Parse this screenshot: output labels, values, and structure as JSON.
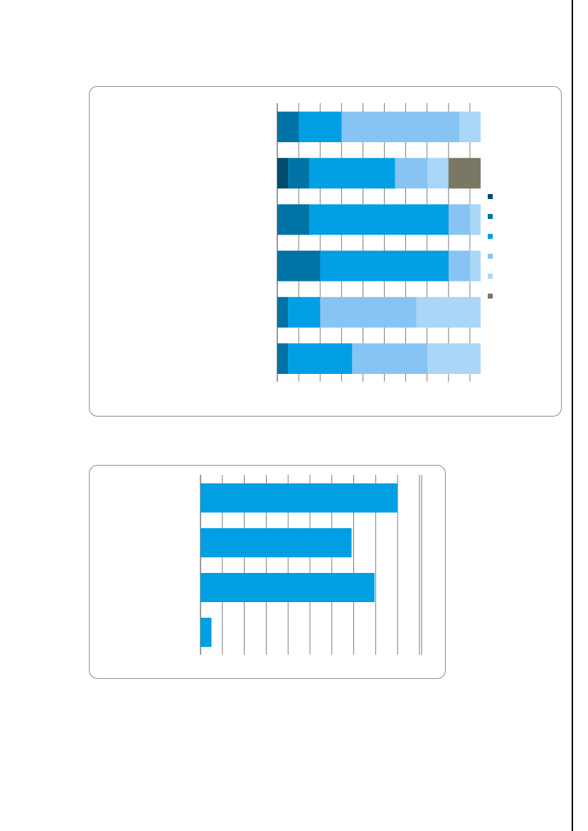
{
  "colors": {
    "series": [
      "#004b6f",
      "#0073a6",
      "#009fe3",
      "#87c4f3",
      "#aad6f7",
      "#7a7865"
    ],
    "grid": "#5a5a5a",
    "frame": "#8c8c8c"
  },
  "chart_data": [
    {
      "type": "bar",
      "orientation": "horizontal",
      "stacked": true,
      "categories": [
        "",
        "",
        "",
        "",
        "",
        ""
      ],
      "series": [
        {
          "values": [
            0,
            5,
            0,
            0,
            0,
            0
          ]
        },
        {
          "values": [
            10,
            10,
            15,
            20,
            5,
            5
          ]
        },
        {
          "values": [
            20,
            40,
            65,
            60,
            15,
            30
          ]
        },
        {
          "values": [
            55,
            15,
            10,
            10,
            45,
            35
          ]
        },
        {
          "values": [
            10,
            10,
            5,
            5,
            30,
            25
          ]
        },
        {
          "values": [
            0,
            15,
            0,
            0,
            0,
            0
          ]
        }
      ],
      "xlim": [
        0,
        95
      ],
      "grid": true,
      "legend": "right"
    },
    {
      "type": "bar",
      "orientation": "horizontal",
      "categories": [
        "",
        "",
        "",
        ""
      ],
      "values": [
        90,
        69,
        79.5,
        5
      ],
      "xlim": [
        0,
        101
      ],
      "grid": true
    }
  ]
}
